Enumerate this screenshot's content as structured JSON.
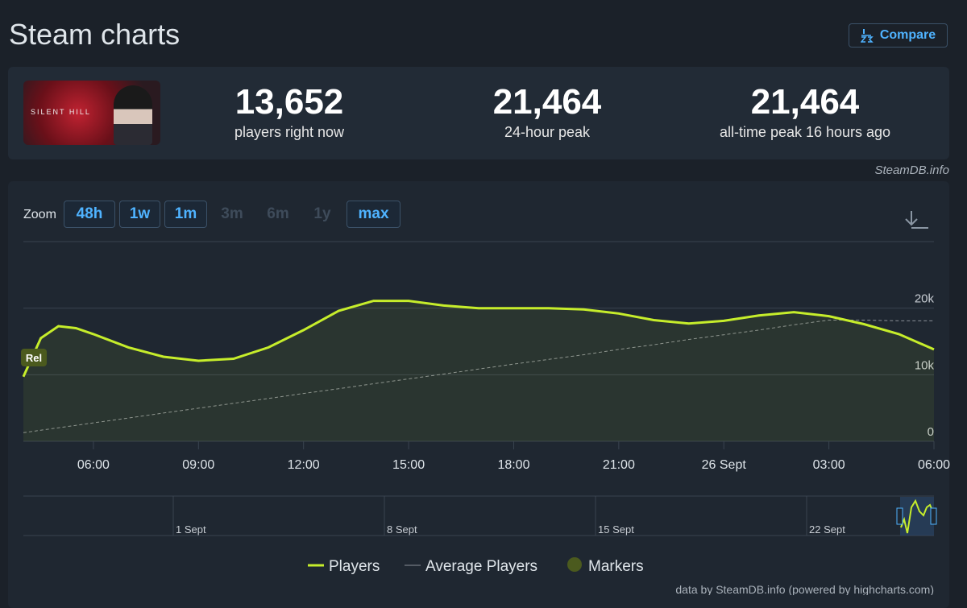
{
  "header": {
    "title": "Steam charts",
    "compare": "Compare"
  },
  "game": {
    "image_text": "SILENT HILL"
  },
  "stats": [
    {
      "value": "13,652",
      "label": "players right now"
    },
    {
      "value": "21,464",
      "label": "24-hour peak"
    },
    {
      "value": "21,464",
      "label": "all-time peak 16 hours ago"
    }
  ],
  "source": "SteamDB.info",
  "zoom": {
    "label": "Zoom",
    "options": [
      {
        "label": "48h",
        "enabled": true
      },
      {
        "label": "1w",
        "enabled": true
      },
      {
        "label": "1m",
        "enabled": true
      },
      {
        "label": "3m",
        "enabled": false
      },
      {
        "label": "6m",
        "enabled": false
      },
      {
        "label": "1y",
        "enabled": false
      },
      {
        "label": "max",
        "enabled": true
      }
    ]
  },
  "chart_data": {
    "type": "line",
    "x": [
      4,
      4.5,
      5,
      5.5,
      6,
      7,
      8,
      9,
      10,
      11,
      12,
      13,
      14,
      15,
      16,
      17,
      18,
      19,
      20,
      21,
      22,
      23,
      24,
      25,
      26,
      27,
      28,
      29,
      30
    ],
    "series": [
      {
        "name": "Players",
        "color": "#c6ed2b",
        "values": [
          9700,
          15500,
          17300,
          17000,
          16100,
          14100,
          12700,
          12100,
          12400,
          14100,
          16700,
          19600,
          21100,
          21100,
          20400,
          20000,
          20000,
          20000,
          19800,
          19200,
          18200,
          17700,
          18100,
          18900,
          19400,
          18800,
          17600,
          16100,
          13800
        ]
      },
      {
        "name": "Average Players",
        "color": "#8a8f96",
        "dashed": true,
        "values": [
          1300,
          1670,
          2030,
          2400,
          2770,
          3500,
          4240,
          4970,
          5710,
          6430,
          7180,
          7900,
          8650,
          9380,
          10100,
          10850,
          11600,
          12300,
          13000,
          13800,
          14500,
          15300,
          16000,
          16700,
          17500,
          18200,
          18200,
          18100,
          18100
        ]
      }
    ],
    "xlim": [
      4,
      30
    ],
    "xticks": [
      {
        "value": 6,
        "label": "06:00"
      },
      {
        "value": 9,
        "label": "09:00"
      },
      {
        "value": 12,
        "label": "12:00"
      },
      {
        "value": 15,
        "label": "15:00"
      },
      {
        "value": 18,
        "label": "18:00"
      },
      {
        "value": 21,
        "label": "21:00"
      },
      {
        "value": 24,
        "label": "26 Sept"
      },
      {
        "value": 27,
        "label": "03:00"
      },
      {
        "value": 30,
        "label": "06:00"
      }
    ],
    "ylim": [
      0,
      30000
    ],
    "yticks": [
      0,
      {
        "value": 10000,
        "label": "10k"
      },
      {
        "value": 20000,
        "label": "20k"
      }
    ],
    "grid": true,
    "markers": [
      {
        "label": "Rel",
        "x": 4.3
      }
    ],
    "markers_legend": "Markers",
    "navigator_labels": [
      "1 Sept",
      "8 Sept",
      "15 Sept",
      "22 Sept"
    ],
    "credit": "data by SteamDB.info (powered by highcharts.com)"
  }
}
